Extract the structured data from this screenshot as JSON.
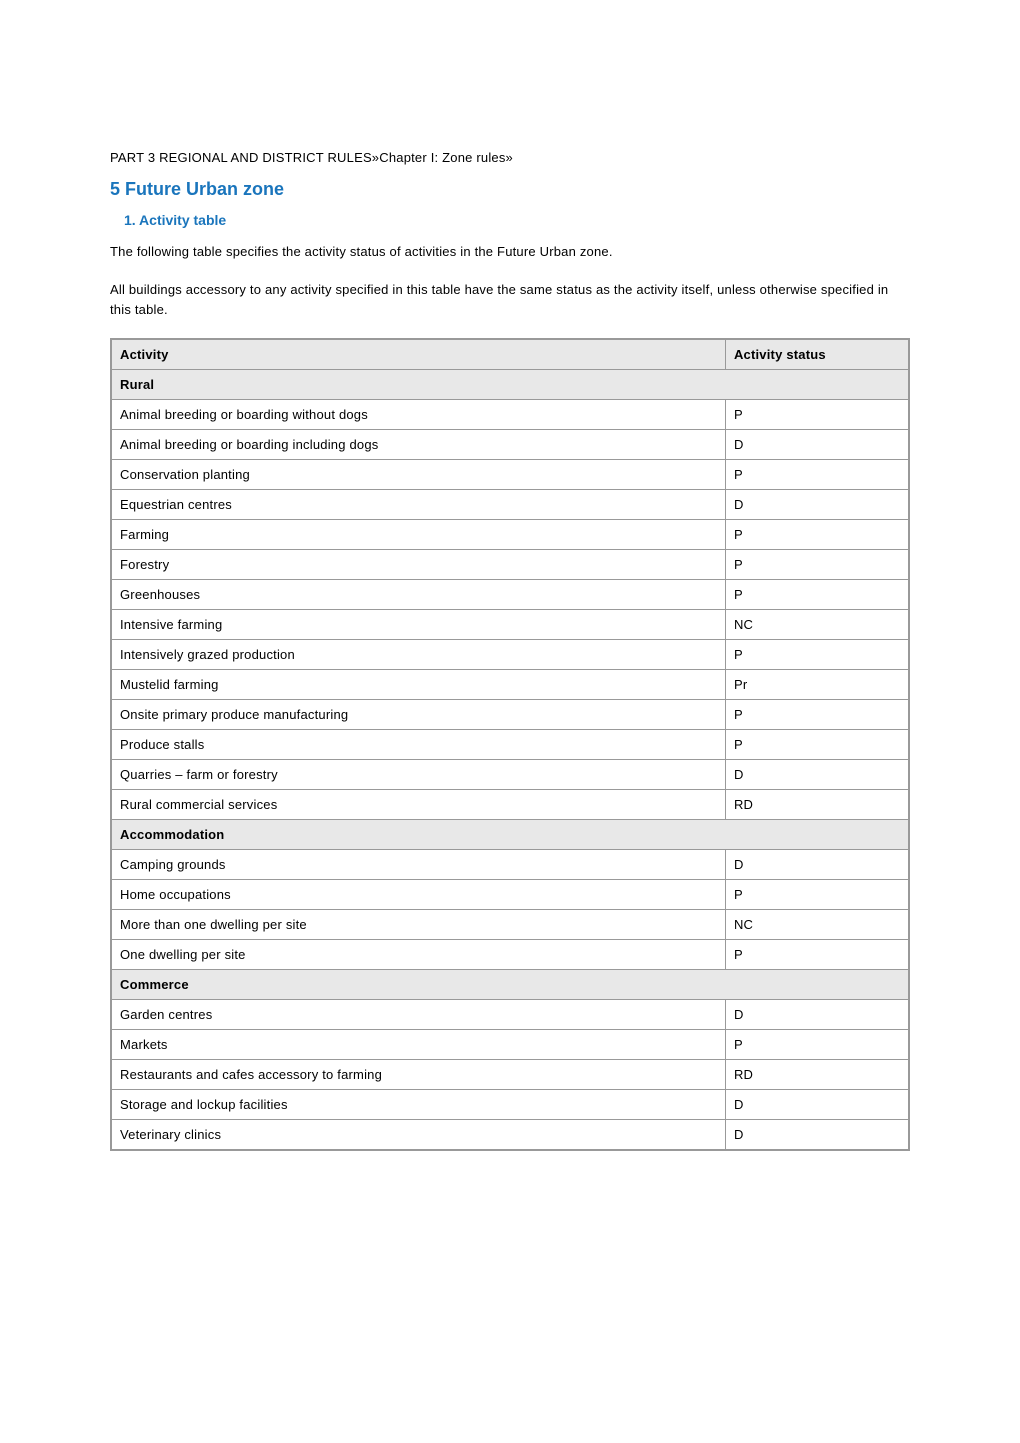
{
  "breadcrumb": "PART 3  REGIONAL AND DISTRICT RULES»Chapter I: Zone rules»",
  "heading1": "5 Future Urban zone",
  "heading2": "1. Activity table",
  "intro1": "The following table specifies the activity status of activities in the Future Urban zone.",
  "intro2": "All buildings accessory to any activity specified in this table have the same status as the activity itself, unless otherwise specified in this table.",
  "table": {
    "headers": {
      "activity": "Activity",
      "status": "Activity status"
    },
    "colors": {
      "border": "#999999",
      "header_bg": "#e8e8e8",
      "section_bg": "#e8e8e8",
      "text": "#000000",
      "heading_text": "#1a75bc"
    },
    "sections": [
      {
        "title": "Rural",
        "rows": [
          {
            "activity": "Animal breeding or boarding without dogs",
            "status": "P"
          },
          {
            "activity": "Animal breeding or boarding including dogs",
            "status": "D"
          },
          {
            "activity": "Conservation planting",
            "status": "P"
          },
          {
            "activity": "Equestrian centres",
            "status": "D"
          },
          {
            "activity": "Farming",
            "status": "P"
          },
          {
            "activity": "Forestry",
            "status": "P"
          },
          {
            "activity": "Greenhouses",
            "status": "P"
          },
          {
            "activity": "Intensive farming",
            "status": "NC"
          },
          {
            "activity": "Intensively grazed production",
            "status": "P"
          },
          {
            "activity": "Mustelid farming",
            "status": "Pr"
          },
          {
            "activity": "Onsite primary produce manufacturing",
            "status": "P"
          },
          {
            "activity": "Produce stalls",
            "status": "P"
          },
          {
            "activity": "Quarries – farm or forestry",
            "status": "D"
          },
          {
            "activity": "Rural commercial services",
            "status": "RD"
          }
        ]
      },
      {
        "title": "Accommodation",
        "rows": [
          {
            "activity": "Camping grounds",
            "status": "D"
          },
          {
            "activity": "Home occupations",
            "status": "P"
          },
          {
            "activity": "More than one dwelling per site",
            "status": "NC"
          },
          {
            "activity": "One dwelling per site",
            "status": "P"
          }
        ]
      },
      {
        "title": "Commerce",
        "rows": [
          {
            "activity": "Garden centres",
            "status": "D"
          },
          {
            "activity": "Markets",
            "status": "P"
          },
          {
            "activity": "Restaurants and cafes  accessory to farming",
            "status": "RD"
          },
          {
            "activity": "Storage and lockup facilities",
            "status": "D"
          },
          {
            "activity": "Veterinary clinics",
            "status": "D"
          }
        ]
      }
    ]
  }
}
